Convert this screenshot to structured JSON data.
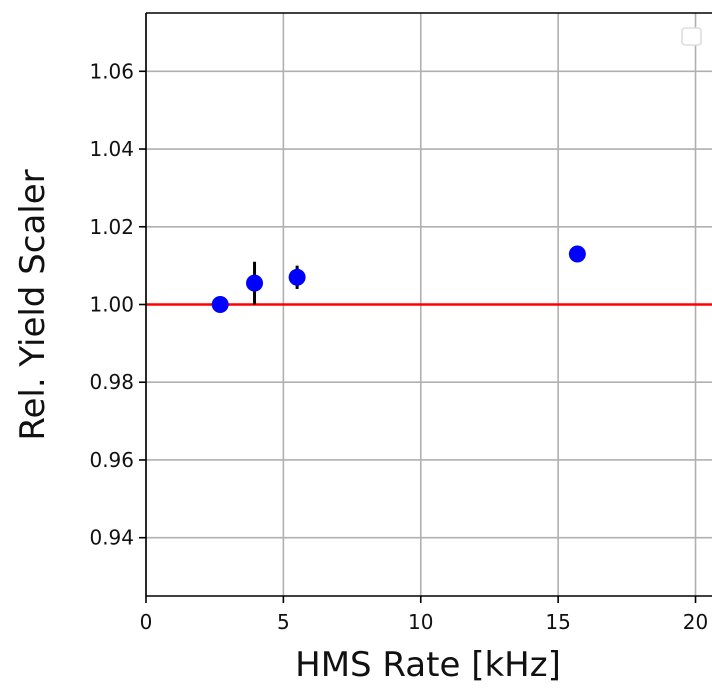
{
  "chart_data": {
    "type": "scatter",
    "xlabel": "HMS Rate [kHz]",
    "ylabel": "Rel. Yield Scaler",
    "xlim": [
      0,
      20.6
    ],
    "ylim": [
      0.925,
      1.075
    ],
    "grid": true,
    "legend": "top-right",
    "x_ticks": [
      0,
      5,
      10,
      15,
      20
    ],
    "x_tick_labels": [
      "0",
      "5",
      "10",
      "15",
      "20"
    ],
    "y_ticks": [
      0.94,
      0.96,
      0.98,
      1.0,
      1.02,
      1.04,
      1.06
    ],
    "y_tick_labels": [
      "0.94",
      "0.96",
      "0.98",
      "1.00",
      "1.02",
      "1.04",
      "1.06"
    ],
    "reference_line": {
      "y": 1.0,
      "color": "#ff0000"
    },
    "series": [
      {
        "color": "#0000ff",
        "points": [
          {
            "x": 2.7,
            "y": 1.0,
            "err": 0.0
          },
          {
            "x": 3.95,
            "y": 1.0055,
            "err": 0.0055
          },
          {
            "x": 5.5,
            "y": 1.007,
            "err": 0.003
          },
          {
            "x": 15.7,
            "y": 1.013,
            "err": 0.0
          }
        ]
      }
    ]
  }
}
